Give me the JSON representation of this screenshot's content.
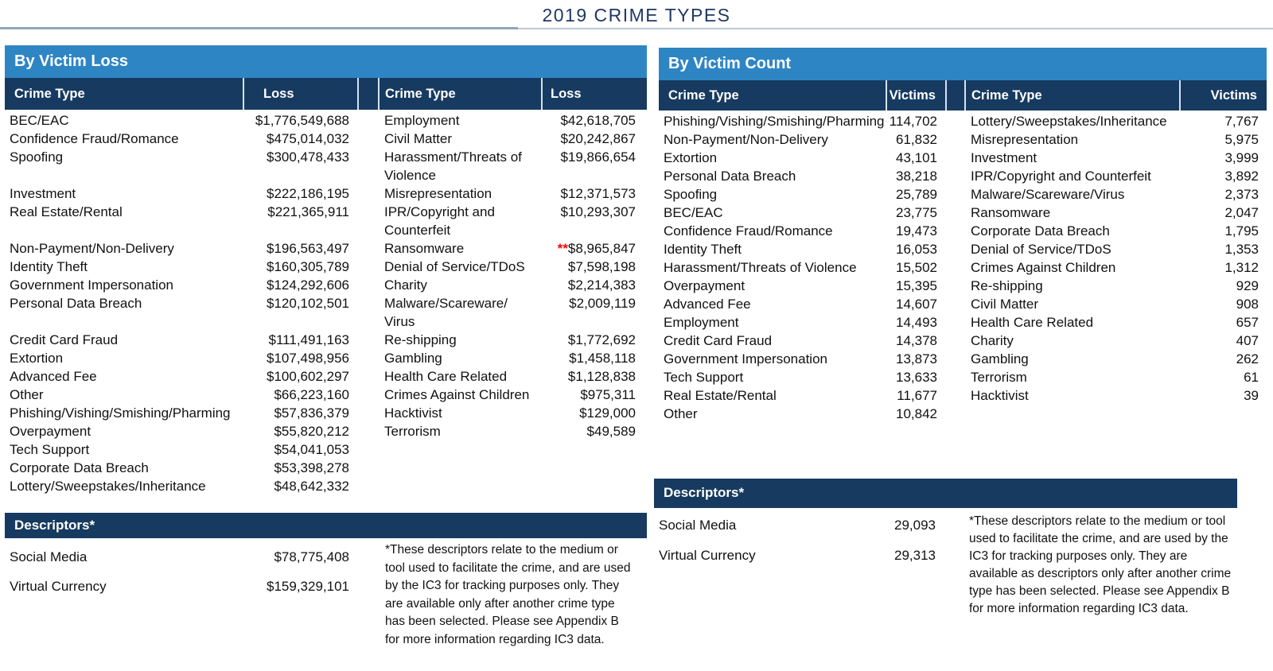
{
  "title": "2019 CRIME TYPES",
  "footnote_marker": "**",
  "colors": {
    "accent_light_blue": "#2e85c4",
    "accent_dark_navy": "#173a60",
    "title_navy": "#1f3864",
    "marker_red": "#ff0000"
  },
  "loss_panel": {
    "title": "By Victim Loss",
    "col_headers": [
      "Crime Type",
      "Loss",
      "Crime Type",
      "Loss"
    ],
    "rows": [
      {
        "c1": "BEC/EAC",
        "v1": "$1,776,549,688",
        "c2": "Employment",
        "v2": "$42,618,705"
      },
      {
        "c1": "Confidence Fraud/Romance",
        "v1": "$475,014,032",
        "c2": "Civil Matter",
        "v2": "$20,242,867"
      },
      {
        "c1": "Spoofing",
        "v1": "$300,478,433",
        "c2": "Harassment/Threats of\nViolence",
        "v2": "$19,866,654"
      },
      {
        "c1": "Investment",
        "v1": "$222,186,195",
        "c2": "Misrepresentation",
        "v2": "$12,371,573"
      },
      {
        "c1": "Real Estate/Rental",
        "v1": "$221,365,911",
        "c2": "IPR/Copyright and\nCounterfeit",
        "v2": "$10,293,307"
      },
      {
        "c1": "Non-Payment/Non-Delivery",
        "v1": "$196,563,497",
        "c2": "Ransomware",
        "v2": "$8,965,847",
        "m2": true
      },
      {
        "c1": "Identity Theft",
        "v1": "$160,305,789",
        "c2": "Denial of Service/TDoS",
        "v2": "$7,598,198"
      },
      {
        "c1": "Government Impersonation",
        "v1": "$124,292,606",
        "c2": "Charity",
        "v2": "$2,214,383"
      },
      {
        "c1": "Personal Data Breach",
        "v1": "$120,102,501",
        "c2": "Malware/Scareware/\nVirus",
        "v2": "$2,009,119"
      },
      {
        "c1": "Credit Card Fraud",
        "v1": "$111,491,163",
        "c2": "Re-shipping",
        "v2": "$1,772,692"
      },
      {
        "c1": "Extortion",
        "v1": "$107,498,956",
        "c2": "Gambling",
        "v2": "$1,458,118"
      },
      {
        "c1": "Advanced Fee",
        "v1": "$100,602,297",
        "c2": "Health Care Related",
        "v2": "$1,128,838"
      },
      {
        "c1": "Other",
        "v1": "$66,223,160",
        "c2": "Crimes Against Children",
        "v2": "$975,311"
      },
      {
        "c1": "Phishing/Vishing/Smishing/Pharming",
        "v1": "$57,836,379",
        "c2": "Hacktivist",
        "v2": "$129,000"
      },
      {
        "c1": "Overpayment",
        "v1": "$55,820,212",
        "c2": "Terrorism",
        "v2": "$49,589"
      },
      {
        "c1": "Tech Support",
        "v1": "$54,041,053",
        "c2": "",
        "v2": ""
      },
      {
        "c1": "Corporate Data Breach",
        "v1": "$53,398,278",
        "c2": "",
        "v2": ""
      },
      {
        "c1": "Lottery/Sweepstakes/Inheritance",
        "v1": "$48,642,332",
        "c2": "",
        "v2": ""
      }
    ]
  },
  "count_panel": {
    "title": "By Victim Count",
    "col_headers": [
      "Crime Type",
      "Victims",
      "Crime Type",
      "Victims"
    ],
    "rows": [
      {
        "c1": "Phishing/Vishing/Smishing/Pharming",
        "v1": "114,702",
        "c2": "Lottery/Sweepstakes/Inheritance",
        "v2": "7,767"
      },
      {
        "c1": "Non-Payment/Non-Delivery",
        "v1": "61,832",
        "c2": "Misrepresentation",
        "v2": "5,975"
      },
      {
        "c1": "Extortion",
        "v1": "43,101",
        "c2": "Investment",
        "v2": "3,999"
      },
      {
        "c1": "Personal Data Breach",
        "v1": "38,218",
        "c2": "IPR/Copyright and Counterfeit",
        "v2": "3,892"
      },
      {
        "c1": "Spoofing",
        "v1": "25,789",
        "c2": "Malware/Scareware/Virus",
        "v2": "2,373"
      },
      {
        "c1": "BEC/EAC",
        "v1": "23,775",
        "c2": "Ransomware",
        "v2": "2,047"
      },
      {
        "c1": "Confidence Fraud/Romance",
        "v1": "19,473",
        "c2": "Corporate Data Breach",
        "v2": "1,795"
      },
      {
        "c1": "Identity Theft",
        "v1": "16,053",
        "c2": "Denial of Service/TDoS",
        "v2": "1,353"
      },
      {
        "c1": "Harassment/Threats of Violence",
        "v1": "15,502",
        "c2": "Crimes Against Children",
        "v2": "1,312"
      },
      {
        "c1": "Overpayment",
        "v1": "15,395",
        "c2": "Re-shipping",
        "v2": "929"
      },
      {
        "c1": "Advanced Fee",
        "v1": "14,607",
        "c2": "Civil Matter",
        "v2": "908"
      },
      {
        "c1": "Employment",
        "v1": "14,493",
        "c2": "Health Care Related",
        "v2": "657"
      },
      {
        "c1": "Credit Card Fraud",
        "v1": "14,378",
        "c2": "Charity",
        "v2": "407"
      },
      {
        "c1": "Government Impersonation",
        "v1": "13,873",
        "c2": "Gambling",
        "v2": "262"
      },
      {
        "c1": "Tech Support",
        "v1": "13,633",
        "c2": "Terrorism",
        "v2": "61"
      },
      {
        "c1": "Real Estate/Rental",
        "v1": "11,677",
        "c2": "Hacktivist",
        "v2": "39"
      },
      {
        "c1": "Other",
        "v1": "10,842",
        "c2": "",
        "v2": ""
      }
    ]
  },
  "loss_descriptors": {
    "title": "Descriptors*",
    "rows": [
      {
        "label": "Social Media",
        "value": "$78,775,408"
      },
      {
        "label": "Virtual Currency",
        "value": "$159,329,101"
      }
    ],
    "note": "*These descriptors relate to the medium or tool used to facilitate the crime, and are used by the IC3 for tracking purposes only. They are available only after another crime type has been selected. Please see Appendix B for more information regarding IC3 data."
  },
  "count_descriptors": {
    "title": "Descriptors*",
    "rows": [
      {
        "label": "Social Media",
        "value": "29,093"
      },
      {
        "label": "Virtual Currency",
        "value": "29,313"
      }
    ],
    "note": "*These descriptors relate to the medium or tool used to facilitate the crime, and are used by the IC3 for tracking purposes only. They are available as descriptors only after another crime type has been selected. Please see Appendix B for more information regarding IC3 data."
  }
}
